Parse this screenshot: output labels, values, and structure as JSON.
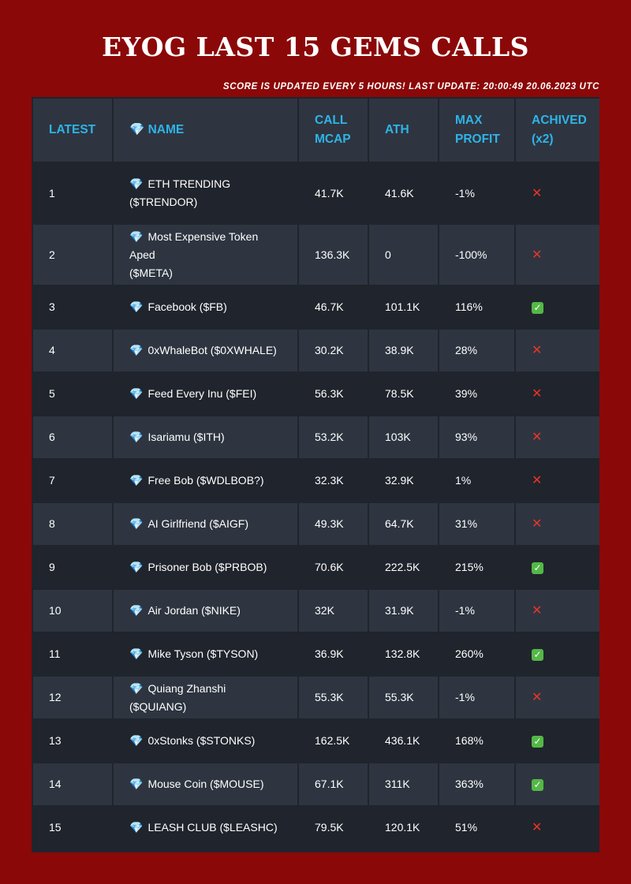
{
  "header": {
    "title": "EYOG LAST 15 GEMS CALLS",
    "update_note": "Score is updated every 5 hours! Last update: 20:00:49 20.06.2023 UTC"
  },
  "table": {
    "columns": [
      "LATEST",
      "💎 NAME",
      "CALL MCAP",
      "ATH",
      "MAX PROFIT",
      "ACHIVED (x2)"
    ],
    "rows": [
      {
        "latest": "1",
        "name_line1": "ETH TRENDING",
        "name_line2": "($TRENDOR)",
        "call_mcap": "41.7K",
        "ath": "41.6K",
        "max_profit": "-1%",
        "achieved": false
      },
      {
        "latest": "2",
        "name_line1": "Most Expensive Token Aped",
        "name_line2": "($META)",
        "call_mcap": "136.3K",
        "ath": "0",
        "max_profit": "-100%",
        "achieved": false
      },
      {
        "latest": "3",
        "name_line1": "Facebook ($FB)",
        "name_line2": "",
        "call_mcap": "46.7K",
        "ath": "101.1K",
        "max_profit": "116%",
        "achieved": true
      },
      {
        "latest": "4",
        "name_line1": "0xWhaleBot ($0XWHALE)",
        "name_line2": "",
        "call_mcap": "30.2K",
        "ath": "38.9K",
        "max_profit": "28%",
        "achieved": false
      },
      {
        "latest": "5",
        "name_line1": "Feed Every Inu ($FEI)",
        "name_line2": "",
        "call_mcap": "56.3K",
        "ath": "78.5K",
        "max_profit": "39%",
        "achieved": false
      },
      {
        "latest": "6",
        "name_line1": "Isariamu ($ITH)",
        "name_line2": "",
        "call_mcap": "53.2K",
        "ath": "103K",
        "max_profit": "93%",
        "achieved": false
      },
      {
        "latest": "7",
        "name_line1": "Free Bob ($WDLBOB?)",
        "name_line2": "",
        "call_mcap": "32.3K",
        "ath": "32.9K",
        "max_profit": "1%",
        "achieved": false
      },
      {
        "latest": "8",
        "name_line1": "AI Girlfriend ($AIGF)",
        "name_line2": "",
        "call_mcap": "49.3K",
        "ath": "64.7K",
        "max_profit": "31%",
        "achieved": false
      },
      {
        "latest": "9",
        "name_line1": "Prisoner Bob ($PRBOB)",
        "name_line2": "",
        "call_mcap": "70.6K",
        "ath": "222.5K",
        "max_profit": "215%",
        "achieved": true
      },
      {
        "latest": "10",
        "name_line1": "Air Jordan ($NIKE)",
        "name_line2": "",
        "call_mcap": "32K",
        "ath": "31.9K",
        "max_profit": "-1%",
        "achieved": false
      },
      {
        "latest": "11",
        "name_line1": "Mike Tyson ($TYSON)",
        "name_line2": "",
        "call_mcap": "36.9K",
        "ath": "132.8K",
        "max_profit": "260%",
        "achieved": true
      },
      {
        "latest": "12",
        "name_line1": "Quiang Zhanshi ($QUIANG)",
        "name_line2": "",
        "call_mcap": "55.3K",
        "ath": "55.3K",
        "max_profit": "-1%",
        "achieved": false
      },
      {
        "latest": "13",
        "name_line1": "0xStonks ($STONKS)",
        "name_line2": "",
        "call_mcap": "162.5K",
        "ath": "436.1K",
        "max_profit": "168%",
        "achieved": true
      },
      {
        "latest": "14",
        "name_line1": "Mouse Coin ($MOUSE)",
        "name_line2": "",
        "call_mcap": "67.1K",
        "ath": "311K",
        "max_profit": "363%",
        "achieved": true
      },
      {
        "latest": "15",
        "name_line1": "LEASH CLUB ($LEASHC)",
        "name_line2": "",
        "call_mcap": "79.5K",
        "ath": "120.1K",
        "max_profit": "51%",
        "achieved": false
      }
    ]
  },
  "icons": {
    "gem": "gem-icon",
    "achieved_yes": "check-mark-icon",
    "achieved_no": "cross-mark-icon"
  },
  "colors": {
    "background": "#8b0808",
    "header_text": "#2fb4e8",
    "row_dark": "#20242c",
    "row_light": "#2e3540",
    "yes": "#54b847",
    "no": "#e8352a"
  }
}
